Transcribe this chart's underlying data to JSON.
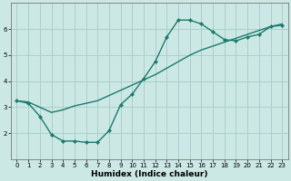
{
  "xlabel": "Humidex (Indice chaleur)",
  "bg_color": "#cce8e4",
  "grid_color": "#aacfcb",
  "line_color": "#1a7a6e",
  "line1_x": [
    0,
    1,
    2,
    3,
    4,
    5,
    6,
    7,
    8,
    9,
    10,
    11,
    12,
    13,
    14,
    15,
    16,
    17,
    18,
    19,
    20,
    21,
    22,
    23
  ],
  "line1_y": [
    3.25,
    3.15,
    2.65,
    1.95,
    1.7,
    1.7,
    1.65,
    1.65,
    2.1,
    3.1,
    3.5,
    4.1,
    4.75,
    5.7,
    6.35,
    6.35,
    6.2,
    5.9,
    5.6,
    5.55,
    5.7,
    5.8,
    6.1,
    6.15
  ],
  "line2_x": [
    0,
    1,
    2,
    3,
    4,
    5,
    6,
    7,
    8,
    9,
    10,
    11,
    12,
    13,
    14,
    15,
    16,
    17,
    18,
    19,
    20,
    21,
    22,
    23
  ],
  "line2_y": [
    3.25,
    3.2,
    3.0,
    2.8,
    2.9,
    3.05,
    3.15,
    3.25,
    3.45,
    3.65,
    3.85,
    4.05,
    4.25,
    4.5,
    4.75,
    5.0,
    5.2,
    5.35,
    5.5,
    5.65,
    5.8,
    5.95,
    6.1,
    6.2
  ],
  "xlim": [
    -0.5,
    23.5
  ],
  "ylim": [
    1.0,
    7.0
  ],
  "yticks": [
    2,
    3,
    4,
    5,
    6
  ],
  "xticks": [
    0,
    1,
    2,
    3,
    4,
    5,
    6,
    7,
    8,
    9,
    10,
    11,
    12,
    13,
    14,
    15,
    16,
    17,
    18,
    19,
    20,
    21,
    22,
    23
  ],
  "xlabel_fontsize": 6.5,
  "tick_fontsize": 5.0,
  "linewidth": 1.0,
  "markersize": 2.2
}
